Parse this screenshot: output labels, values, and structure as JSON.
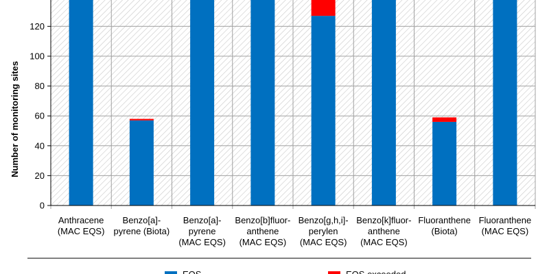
{
  "chart_data": {
    "type": "bar",
    "stacked": true,
    "ylabel": "Number of monitoring sites",
    "ylim": [
      0,
      140
    ],
    "yticks": [
      0,
      20,
      40,
      60,
      80,
      100,
      120
    ],
    "grid": true,
    "categories": [
      [
        "Anthracene",
        "(MAC EQS)"
      ],
      [
        "Benzo[a]-",
        "pyrene (Biota)"
      ],
      [
        "Benzo[a]-",
        "pyrene",
        "(MAC EQS)"
      ],
      [
        "Benzo[b]fluor-",
        "anthene",
        "(MAC EQS)"
      ],
      [
        "Benzo[g,h,i]-",
        "perylen",
        "(MAC EQS)"
      ],
      [
        "Benzo[k]fluor-",
        "anthene",
        "(MAC EQS)"
      ],
      [
        "Fluoranthene",
        "(Biota)"
      ],
      [
        "Fluoranthene",
        "(MAC EQS)"
      ]
    ],
    "series": [
      {
        "color": "#0070c0",
        "values": [
          140,
          57,
          140,
          140,
          127,
          140,
          56,
          140
        ]
      },
      {
        "color": "#ff0000",
        "values": [
          0,
          1,
          0,
          0,
          13,
          0,
          3,
          0
        ]
      }
    ],
    "legend": {
      "position": "bottom",
      "entries": [
        "EQS",
        "EQS exceeded"
      ]
    }
  }
}
